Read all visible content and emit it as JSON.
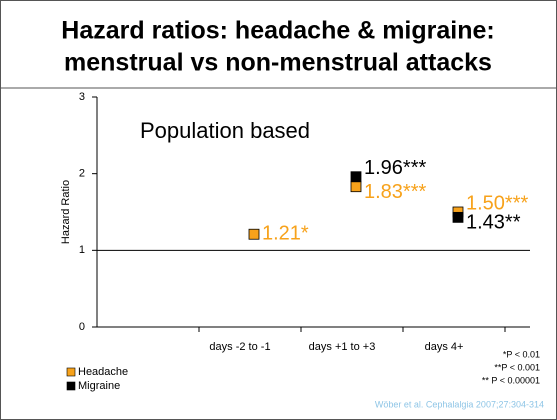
{
  "chart_data": {
    "type": "scatter",
    "title": [
      "Hazard ratios: headache & migraine:",
      "menstrual vs non-menstrual attacks"
    ],
    "annotation": "Population based",
    "ylabel": "Hazard Ratio",
    "categories": [
      null,
      "days -2 to -1",
      "days +1 to +3",
      "days 4+"
    ],
    "series": [
      {
        "name": "Headache",
        "color": "#f7a21b",
        "values": [
          null,
          1.21,
          1.83,
          1.5
        ],
        "value_labels": [
          null,
          "1.21*",
          "1.83***",
          "1.50***"
        ]
      },
      {
        "name": "Migraine",
        "color": "#000000",
        "values": [
          null,
          null,
          1.96,
          1.43
        ],
        "value_labels": [
          null,
          null,
          "1.96***",
          "1.43**"
        ]
      }
    ],
    "ylim": [
      0,
      3
    ],
    "yticks": [
      0,
      1,
      2,
      3
    ],
    "reference_line": 1,
    "footnotes": [
      "*P < 0.01",
      "**P < 0.001",
      "** P < 0.00001"
    ],
    "citation": "Wöber et al. Cephalalgia 2007;27:304-314"
  }
}
